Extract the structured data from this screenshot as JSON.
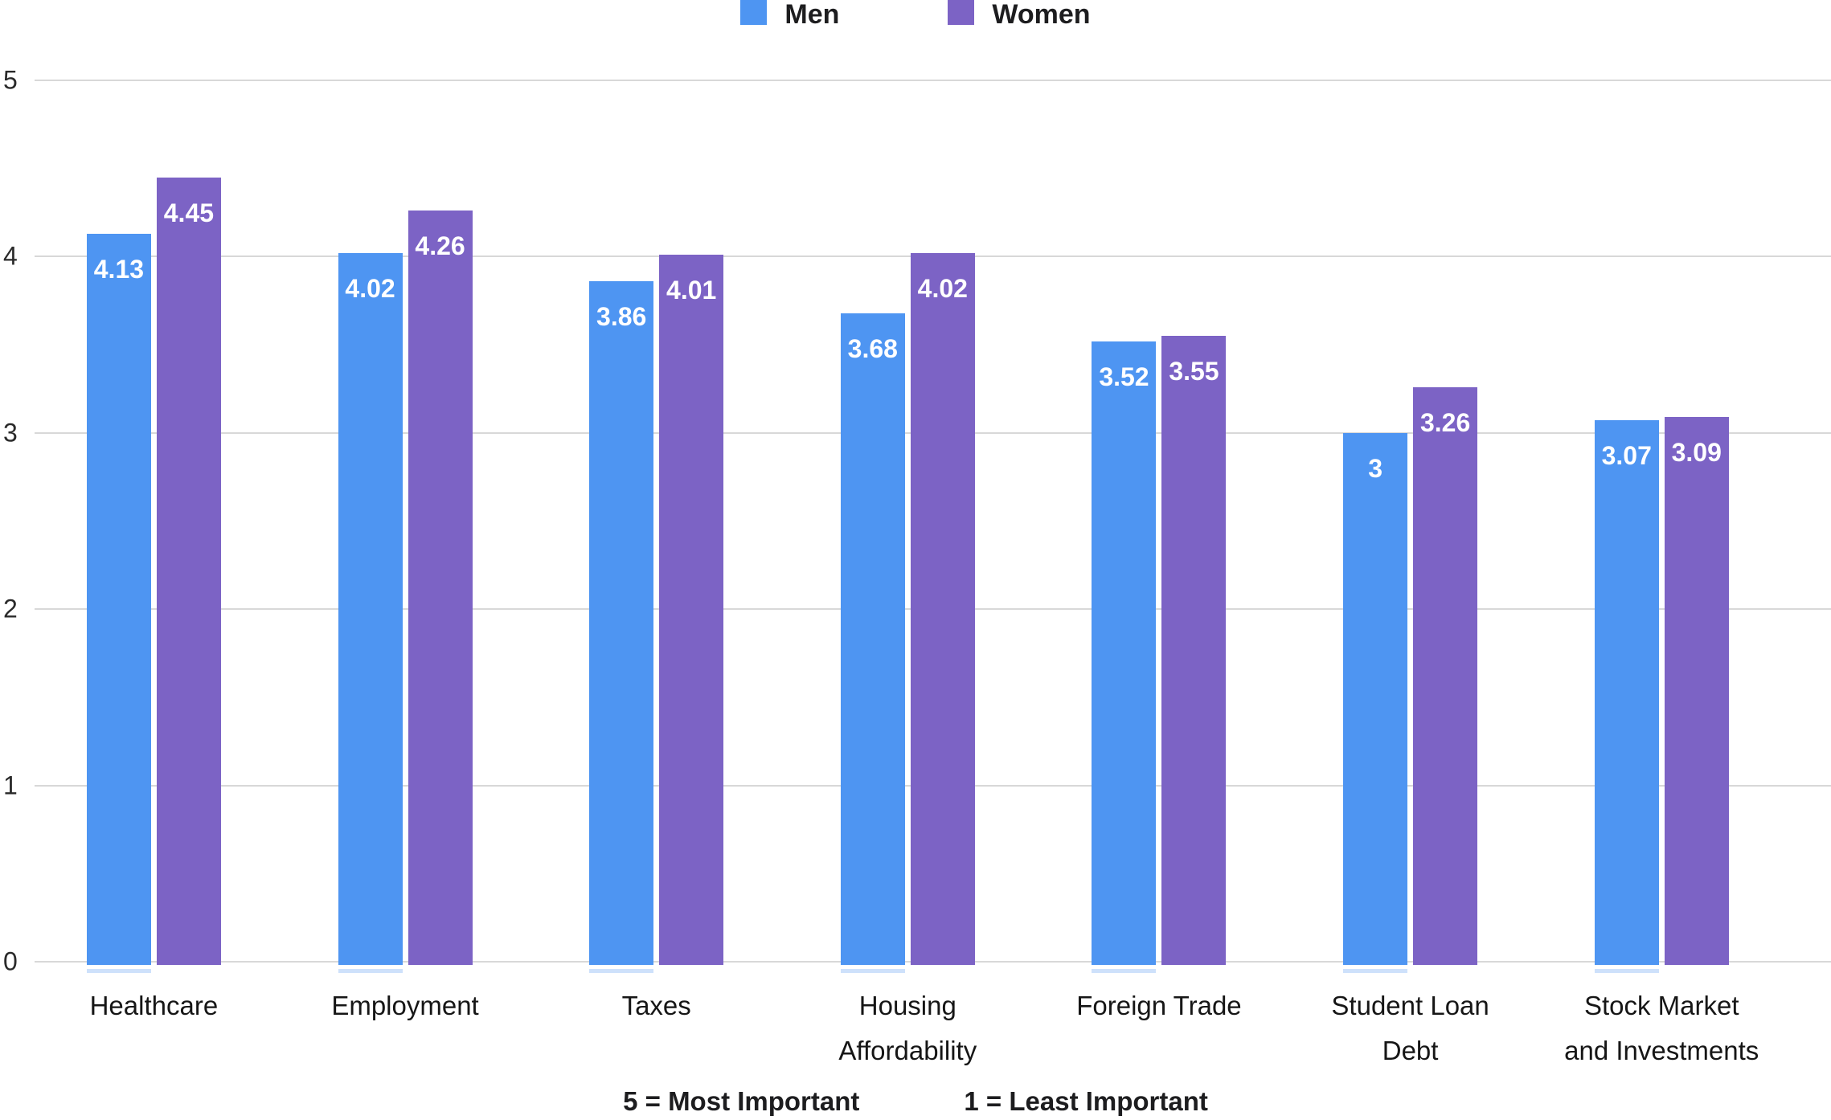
{
  "legend": {
    "items": [
      {
        "label": "Men",
        "swatch": "men-color-swatch"
      },
      {
        "label": "Women",
        "swatch": "women-color-swatch"
      }
    ]
  },
  "colors": {
    "men": "#4E95F2",
    "women": "#7C63C5",
    "gridline": "#D8D8D8",
    "value_label": "#FFFFFF"
  },
  "footer": {
    "left": "5 = Most Important",
    "right": "1 = Least Important"
  },
  "chart_data": {
    "type": "bar",
    "title": "",
    "categories": [
      "Healthcare",
      "Employment",
      "Taxes",
      "Housing Affordability",
      "Foreign Trade",
      "Student Loan Debt",
      "Stock Market and Investments"
    ],
    "category_lines": [
      [
        "Healthcare"
      ],
      [
        "Employment"
      ],
      [
        "Taxes"
      ],
      [
        "Housing",
        "Affordability"
      ],
      [
        "Foreign Trade"
      ],
      [
        "Student Loan",
        "Debt"
      ],
      [
        "Stock Market",
        "and Investments"
      ]
    ],
    "series": [
      {
        "name": "Men",
        "color": "#4E95F2",
        "values": [
          4.13,
          4.02,
          3.86,
          3.68,
          3.52,
          3,
          3.07
        ],
        "labels": [
          "4.13",
          "4.02",
          "3.86",
          "3.68",
          "3.52",
          "3",
          "3.07"
        ]
      },
      {
        "name": "Women",
        "color": "#7C63C5",
        "values": [
          4.45,
          4.26,
          4.01,
          4.02,
          3.55,
          3.26,
          3.09
        ],
        "labels": [
          "4.45",
          "4.26",
          "4.01",
          "4.02",
          "3.55",
          "3.26",
          "3.09"
        ]
      }
    ],
    "xlabel": "",
    "ylabel": "",
    "ylim": [
      0,
      5
    ],
    "yticks": [
      0,
      1,
      2,
      3,
      4,
      5
    ],
    "grid": true,
    "legend_position": "top-center",
    "annotations": [
      "5 = Most Important",
      "1 = Least Important"
    ]
  }
}
